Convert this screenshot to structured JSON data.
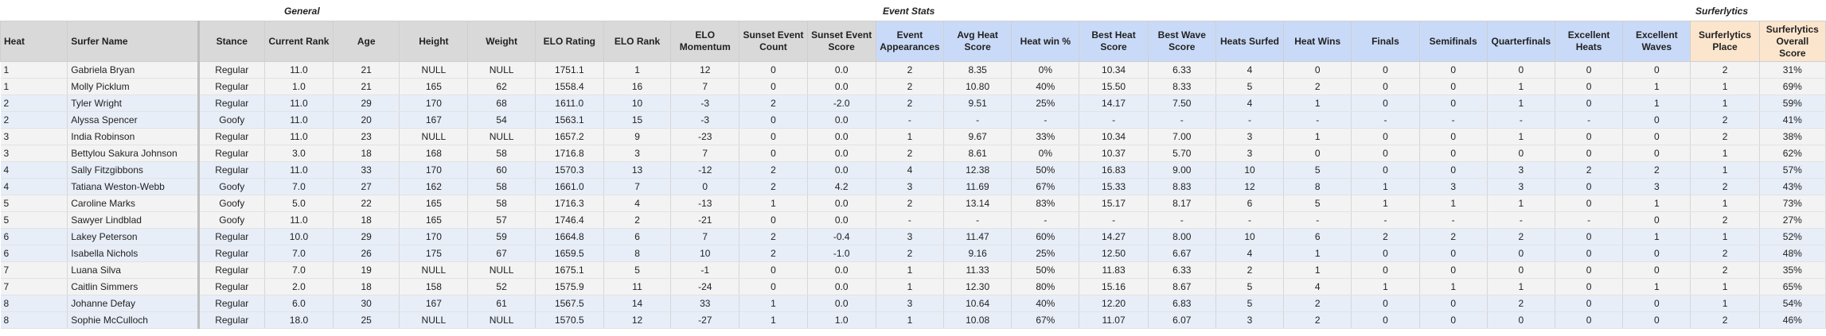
{
  "groups": {
    "general": "General",
    "event_stats": "Event Stats",
    "surferlytics": "Surferlytics"
  },
  "columns": [
    "Heat",
    "Surfer Name",
    "Stance",
    "Current Rank",
    "Age",
    "Height",
    "Weight",
    "ELO Rating",
    "ELO Rank",
    "ELO Momentum",
    "Sunset Event Count",
    "Sunset Event Score",
    "Event Appearances",
    "Avg Heat Score",
    "Heat win %",
    "Best Heat Score",
    "Best Wave Score",
    "Heats Surfed",
    "Heat Wins",
    "Finals",
    "Semifinals",
    "Quarterfinals",
    "Excellent Heats",
    "Excellent Waves",
    "Surferlytics Place",
    "Surferlytics Overall Score"
  ],
  "rows": [
    [
      "1",
      "Gabriela Bryan",
      "Regular",
      "11.0",
      "21",
      "NULL",
      "NULL",
      "1751.1",
      "1",
      "12",
      "0",
      "0.0",
      "2",
      "8.35",
      "0%",
      "10.34",
      "6.33",
      "4",
      "0",
      "0",
      "0",
      "0",
      "0",
      "0",
      "2",
      "31%"
    ],
    [
      "1",
      "Molly Picklum",
      "Regular",
      "1.0",
      "21",
      "165",
      "62",
      "1558.4",
      "16",
      "7",
      "0",
      "0.0",
      "2",
      "10.80",
      "40%",
      "15.50",
      "8.33",
      "5",
      "2",
      "0",
      "0",
      "1",
      "0",
      "1",
      "1",
      "69%"
    ],
    [
      "2",
      "Tyler Wright",
      "Regular",
      "11.0",
      "29",
      "170",
      "68",
      "1611.0",
      "10",
      "-3",
      "2",
      "-2.0",
      "2",
      "9.51",
      "25%",
      "14.17",
      "7.50",
      "4",
      "1",
      "0",
      "0",
      "1",
      "0",
      "1",
      "1",
      "59%"
    ],
    [
      "2",
      "Alyssa Spencer",
      "Goofy",
      "11.0",
      "20",
      "167",
      "54",
      "1563.1",
      "15",
      "-3",
      "0",
      "0.0",
      "-",
      "-",
      "-",
      "-",
      "-",
      "-",
      "-",
      "-",
      "-",
      "-",
      "-",
      "0",
      "2",
      "41%"
    ],
    [
      "3",
      "India Robinson",
      "Regular",
      "11.0",
      "23",
      "NULL",
      "NULL",
      "1657.2",
      "9",
      "-23",
      "0",
      "0.0",
      "1",
      "9.67",
      "33%",
      "10.34",
      "7.00",
      "3",
      "1",
      "0",
      "0",
      "1",
      "0",
      "0",
      "2",
      "38%"
    ],
    [
      "3",
      "Bettylou Sakura Johnson",
      "Regular",
      "3.0",
      "18",
      "168",
      "58",
      "1716.8",
      "3",
      "7",
      "0",
      "0.0",
      "2",
      "8.61",
      "0%",
      "10.37",
      "5.70",
      "3",
      "0",
      "0",
      "0",
      "0",
      "0",
      "0",
      "1",
      "62%"
    ],
    [
      "4",
      "Sally Fitzgibbons",
      "Regular",
      "11.0",
      "33",
      "170",
      "60",
      "1570.3",
      "13",
      "-12",
      "2",
      "0.0",
      "4",
      "12.38",
      "50%",
      "16.83",
      "9.00",
      "10",
      "5",
      "0",
      "0",
      "3",
      "2",
      "2",
      "1",
      "57%"
    ],
    [
      "4",
      "Tatiana Weston-Webb",
      "Goofy",
      "7.0",
      "27",
      "162",
      "58",
      "1661.0",
      "7",
      "0",
      "2",
      "4.2",
      "3",
      "11.69",
      "67%",
      "15.33",
      "8.83",
      "12",
      "8",
      "1",
      "3",
      "3",
      "0",
      "3",
      "2",
      "43%"
    ],
    [
      "5",
      "Caroline Marks",
      "Goofy",
      "5.0",
      "22",
      "165",
      "58",
      "1716.3",
      "4",
      "-13",
      "1",
      "0.0",
      "2",
      "13.14",
      "83%",
      "15.17",
      "8.17",
      "6",
      "5",
      "1",
      "1",
      "1",
      "0",
      "1",
      "1",
      "73%"
    ],
    [
      "5",
      "Sawyer Lindblad",
      "Goofy",
      "11.0",
      "18",
      "165",
      "57",
      "1746.4",
      "2",
      "-21",
      "0",
      "0.0",
      "-",
      "-",
      "-",
      "-",
      "-",
      "-",
      "-",
      "-",
      "-",
      "-",
      "-",
      "0",
      "2",
      "27%"
    ],
    [
      "6",
      "Lakey Peterson",
      "Regular",
      "10.0",
      "29",
      "170",
      "59",
      "1664.8",
      "6",
      "7",
      "2",
      "-0.4",
      "3",
      "11.47",
      "60%",
      "14.27",
      "8.00",
      "10",
      "6",
      "2",
      "2",
      "2",
      "0",
      "1",
      "1",
      "52%"
    ],
    [
      "6",
      "Isabella Nichols",
      "Regular",
      "7.0",
      "26",
      "175",
      "67",
      "1659.5",
      "8",
      "10",
      "2",
      "-1.0",
      "2",
      "9.16",
      "25%",
      "12.50",
      "6.67",
      "4",
      "1",
      "0",
      "0",
      "0",
      "0",
      "0",
      "2",
      "48%"
    ],
    [
      "7",
      "Luana Silva",
      "Regular",
      "7.0",
      "19",
      "NULL",
      "NULL",
      "1675.1",
      "5",
      "-1",
      "0",
      "0.0",
      "1",
      "11.33",
      "50%",
      "11.83",
      "6.33",
      "2",
      "1",
      "0",
      "0",
      "0",
      "0",
      "0",
      "2",
      "35%"
    ],
    [
      "7",
      "Caitlin Simmers",
      "Regular",
      "2.0",
      "18",
      "158",
      "52",
      "1575.9",
      "11",
      "-24",
      "0",
      "0.0",
      "1",
      "12.30",
      "80%",
      "15.16",
      "8.67",
      "5",
      "4",
      "1",
      "1",
      "1",
      "0",
      "1",
      "1",
      "65%"
    ],
    [
      "8",
      "Johanne Defay",
      "Regular",
      "6.0",
      "30",
      "167",
      "61",
      "1567.5",
      "14",
      "33",
      "1",
      "0.0",
      "3",
      "10.64",
      "40%",
      "12.20",
      "6.83",
      "5",
      "2",
      "0",
      "0",
      "2",
      "0",
      "0",
      "1",
      "54%"
    ],
    [
      "8",
      "Sophie McCulloch",
      "Regular",
      "18.0",
      "25",
      "NULL",
      "NULL",
      "1570.5",
      "12",
      "-27",
      "1",
      "1.0",
      "1",
      "10.08",
      "67%",
      "11.07",
      "6.07",
      "3",
      "2",
      "0",
      "0",
      "0",
      "0",
      "0",
      "2",
      "46%"
    ]
  ]
}
